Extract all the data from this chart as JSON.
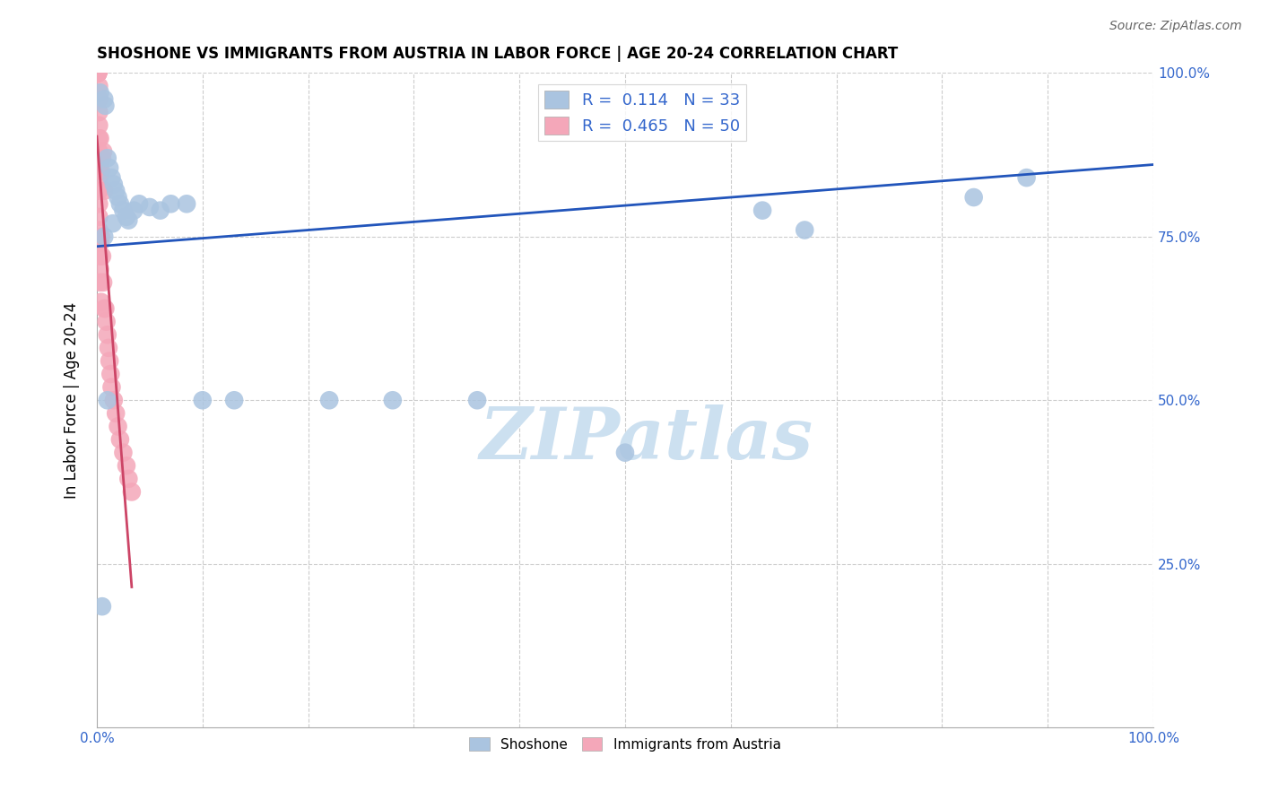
{
  "title": "SHOSHONE VS IMMIGRANTS FROM AUSTRIA IN LABOR FORCE | AGE 20-24 CORRELATION CHART",
  "source": "Source: ZipAtlas.com",
  "ylabel": "In Labor Force | Age 20-24",
  "xlim": [
    0,
    1.0
  ],
  "ylim": [
    0,
    1.0
  ],
  "shoshone_color": "#aac4e0",
  "austria_color": "#f4a7b9",
  "trend_blue": "#2255bb",
  "trend_pink": "#cc4466",
  "watermark_color": "#cce0f0",
  "shoshone_x": [
    0.003,
    0.007,
    0.008,
    0.01,
    0.012,
    0.014,
    0.016,
    0.018,
    0.02,
    0.022,
    0.025,
    0.028,
    0.03,
    0.035,
    0.04,
    0.05,
    0.06,
    0.07,
    0.085,
    0.1,
    0.13,
    0.22,
    0.28,
    0.36,
    0.5,
    0.63,
    0.67,
    0.83,
    0.88,
    0.01,
    0.005,
    0.007,
    0.015
  ],
  "shoshone_y": [
    0.97,
    0.96,
    0.95,
    0.87,
    0.855,
    0.84,
    0.83,
    0.82,
    0.81,
    0.8,
    0.79,
    0.78,
    0.775,
    0.79,
    0.8,
    0.795,
    0.79,
    0.8,
    0.8,
    0.5,
    0.5,
    0.5,
    0.5,
    0.5,
    0.42,
    0.79,
    0.76,
    0.81,
    0.84,
    0.5,
    0.185,
    0.75,
    0.77
  ],
  "austria_x": [
    0.001,
    0.001,
    0.001,
    0.001,
    0.001,
    0.001,
    0.001,
    0.001,
    0.001,
    0.002,
    0.002,
    0.002,
    0.002,
    0.002,
    0.002,
    0.002,
    0.002,
    0.002,
    0.002,
    0.002,
    0.002,
    0.003,
    0.003,
    0.003,
    0.003,
    0.003,
    0.004,
    0.004,
    0.004,
    0.005,
    0.005,
    0.006,
    0.006,
    0.007,
    0.007,
    0.008,
    0.009,
    0.01,
    0.011,
    0.012,
    0.013,
    0.014,
    0.016,
    0.018,
    0.02,
    0.022,
    0.025,
    0.028,
    0.03,
    0.033
  ],
  "austria_y": [
    1.0,
    1.0,
    1.0,
    1.0,
    1.0,
    1.0,
    1.0,
    1.0,
    1.0,
    0.98,
    0.96,
    0.94,
    0.92,
    0.9,
    0.88,
    0.86,
    0.84,
    0.82,
    0.8,
    0.78,
    0.76,
    0.74,
    0.72,
    0.7,
    0.68,
    0.9,
    0.85,
    0.75,
    0.65,
    0.87,
    0.72,
    0.88,
    0.68,
    0.82,
    0.64,
    0.64,
    0.62,
    0.6,
    0.58,
    0.56,
    0.54,
    0.52,
    0.5,
    0.48,
    0.46,
    0.44,
    0.42,
    0.4,
    0.38,
    0.36
  ]
}
